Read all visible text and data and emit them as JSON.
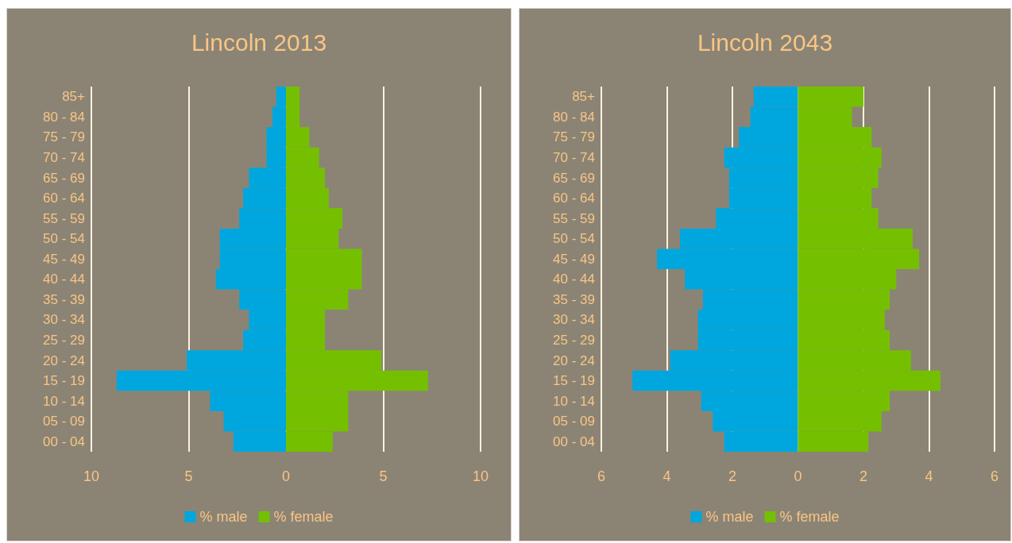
{
  "chart_data": [
    {
      "type": "bar",
      "orientation": "horizontal",
      "stacked": true,
      "title": "Lincoln 2013",
      "categories": [
        "85+",
        "80 - 84",
        "75 - 79",
        "70 - 74",
        "65 - 69",
        "60 - 64",
        "55 - 59",
        "50 - 54",
        "45 - 49",
        "40 - 44",
        "35 - 39",
        "30 - 34",
        "25 - 29",
        "20 - 24",
        "15 - 19",
        "10 - 14",
        "05 - 09",
        "00 - 04"
      ],
      "series": [
        {
          "name": "% male",
          "color": "#00a7de",
          "values": [
            -0.5,
            -0.7,
            -1.0,
            -1.0,
            -1.9,
            -2.2,
            -2.4,
            -3.4,
            -3.4,
            -3.6,
            -2.4,
            -1.9,
            -2.2,
            -5.1,
            -8.7,
            -3.9,
            -3.2,
            -2.7
          ]
        },
        {
          "name": "% female",
          "color": "#74c000",
          "values": [
            0.7,
            0.7,
            1.2,
            1.7,
            2.0,
            2.2,
            2.9,
            2.7,
            3.9,
            3.9,
            3.2,
            2.0,
            2.0,
            4.9,
            7.3,
            3.2,
            3.2,
            2.4
          ]
        }
      ],
      "xlim": [
        -10,
        10
      ],
      "xticks": [
        {
          "value": -10,
          "label": "10"
        },
        {
          "value": -5,
          "label": "5"
        },
        0,
        5,
        10
      ],
      "grid": "x",
      "legend": "bottom"
    },
    {
      "type": "bar",
      "orientation": "horizontal",
      "stacked": true,
      "title": "Lincoln 2043",
      "categories": [
        "85+",
        "80 - 84",
        "75 - 79",
        "70 - 74",
        "65 - 69",
        "60 - 64",
        "55 - 59",
        "50 - 54",
        "45 - 49",
        "40 - 44",
        "35 - 39",
        "30 - 34",
        "25 - 29",
        "20 - 24",
        "15 - 19",
        "10 - 14",
        "05 - 09",
        "00 - 04"
      ],
      "series": [
        {
          "name": "% male",
          "color": "#00a7de",
          "values": [
            -1.35,
            -1.45,
            -1.8,
            -2.25,
            -2.1,
            -2.1,
            -2.5,
            -3.6,
            -4.3,
            -3.45,
            -2.9,
            -3.05,
            -3.05,
            -3.9,
            -5.05,
            -2.95,
            -2.6,
            -2.25
          ]
        },
        {
          "name": "% female",
          "color": "#74c000",
          "values": [
            2.0,
            1.65,
            2.25,
            2.55,
            2.45,
            2.25,
            2.45,
            3.5,
            3.7,
            3.0,
            2.8,
            2.65,
            2.8,
            3.45,
            4.35,
            2.8,
            2.55,
            2.15
          ]
        }
      ],
      "xlim": [
        -6,
        6
      ],
      "xticks": [
        {
          "value": -6,
          "label": "6"
        },
        {
          "value": -4,
          "label": "4"
        },
        {
          "value": -2,
          "label": "2"
        },
        0,
        2,
        4,
        6
      ],
      "grid": "x",
      "legend": "bottom"
    }
  ]
}
